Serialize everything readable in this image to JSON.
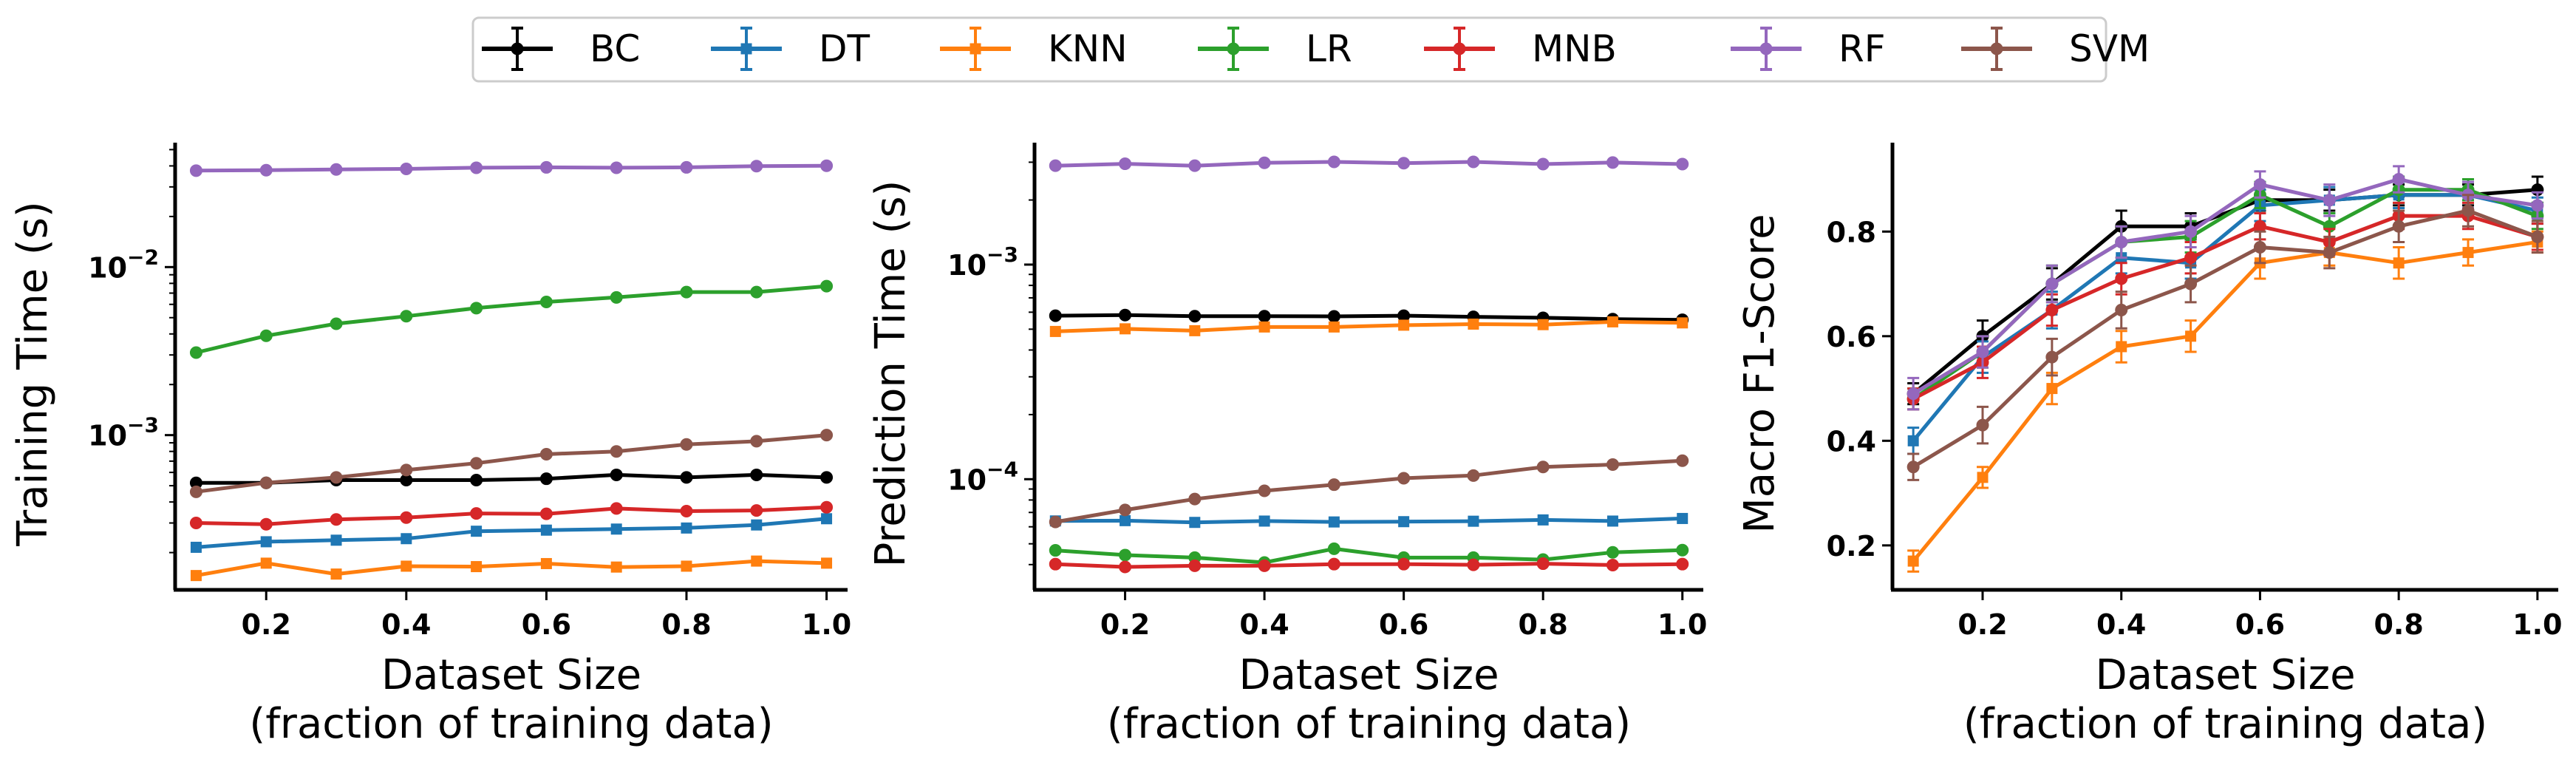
{
  "legend": {
    "entries": [
      {
        "label": "BC",
        "color": "#000000",
        "marker": "circle"
      },
      {
        "label": "DT",
        "color": "#1f77b4",
        "marker": "square"
      },
      {
        "label": "KNN",
        "color": "#ff7f0e",
        "marker": "square"
      },
      {
        "label": "LR",
        "color": "#2ca02c",
        "marker": "circle"
      },
      {
        "label": "MNB",
        "color": "#d62728",
        "marker": "circle"
      },
      {
        "label": "RF",
        "color": "#9467bd",
        "marker": "circle"
      },
      {
        "label": "SVM",
        "color": "#8c564b",
        "marker": "circle"
      }
    ]
  },
  "chart_data": [
    {
      "type": "line",
      "xlabel": "Dataset Size",
      "xlabel2": "(fraction of training data)",
      "ylabel": "Training Time (s)",
      "yscale": "log",
      "ylim": [
        0.00012,
        0.055
      ],
      "xlim": [
        0.07,
        1.03
      ],
      "xticks": [
        "0.2",
        "0.4",
        "0.6",
        "0.8",
        "1.0"
      ],
      "yticks": [
        {
          "value": 0.001,
          "base": "10",
          "exp": "−3"
        },
        {
          "value": 0.01,
          "base": "10",
          "exp": "−2"
        }
      ],
      "x": [
        0.1,
        0.2,
        0.3,
        0.4,
        0.5,
        0.6,
        0.7,
        0.8,
        0.9,
        1.0
      ],
      "series": [
        {
          "name": "BC",
          "values": [
            0.00052,
            0.00052,
            0.00054,
            0.00054,
            0.00054,
            0.00055,
            0.00058,
            0.00056,
            0.00058,
            0.00056
          ]
        },
        {
          "name": "DT",
          "values": [
            0.000215,
            0.000232,
            0.000237,
            0.000242,
            0.000268,
            0.000272,
            0.000276,
            0.00028,
            0.000292,
            0.000318
          ]
        },
        {
          "name": "KNN",
          "values": [
            0.000146,
            0.000173,
            0.000149,
            0.000166,
            0.000165,
            0.000172,
            0.000164,
            0.000166,
            0.000178,
            0.000173
          ]
        },
        {
          "name": "LR",
          "values": [
            0.0031,
            0.0039,
            0.0046,
            0.0051,
            0.0057,
            0.0062,
            0.0066,
            0.0071,
            0.0071,
            0.0077
          ]
        },
        {
          "name": "MNB",
          "values": [
            0.0003,
            0.000295,
            0.000315,
            0.000323,
            0.000342,
            0.00034,
            0.000366,
            0.000353,
            0.000356,
            0.000372
          ]
        },
        {
          "name": "RF",
          "values": [
            0.0375,
            0.0377,
            0.0381,
            0.0384,
            0.039,
            0.0392,
            0.039,
            0.0392,
            0.0399,
            0.0401
          ]
        },
        {
          "name": "SVM",
          "values": [
            0.00046,
            0.00052,
            0.00056,
            0.00062,
            0.00068,
            0.00077,
            0.0008,
            0.00088,
            0.00092,
            0.001
          ]
        }
      ]
    },
    {
      "type": "line",
      "xlabel": "Dataset Size",
      "xlabel2": "(fraction of training data)",
      "ylabel": "Prediction Time (s)",
      "yscale": "log",
      "ylim": [
        3.05e-05,
        0.0037
      ],
      "xlim": [
        0.07,
        1.03
      ],
      "xticks": [
        "0.2",
        "0.4",
        "0.6",
        "0.8",
        "1.0"
      ],
      "yticks": [
        {
          "value": 0.0001,
          "base": "10",
          "exp": "−4"
        },
        {
          "value": 0.001,
          "base": "10",
          "exp": "−3"
        }
      ],
      "x": [
        0.1,
        0.2,
        0.3,
        0.4,
        0.5,
        0.6,
        0.7,
        0.8,
        0.9,
        1.0
      ],
      "series": [
        {
          "name": "BC",
          "values": [
            0.000578,
            0.000582,
            0.000575,
            0.000575,
            0.000574,
            0.000578,
            0.000571,
            0.000565,
            0.000557,
            0.000553
          ]
        },
        {
          "name": "DT",
          "values": [
            6.39e-05,
            6.41e-05,
            6.29e-05,
            6.38e-05,
            6.32e-05,
            6.34e-05,
            6.37e-05,
            6.46e-05,
            6.38e-05,
            6.56e-05
          ]
        },
        {
          "name": "KNN",
          "values": [
            0.000488,
            0.000502,
            0.000492,
            0.000512,
            0.000512,
            0.000522,
            0.000528,
            0.000525,
            0.000541,
            0.000535
          ]
        },
        {
          "name": "LR",
          "values": [
            4.66e-05,
            4.43e-05,
            4.31e-05,
            4.09e-05,
            4.74e-05,
            4.31e-05,
            4.31e-05,
            4.22e-05,
            4.56e-05,
            4.67e-05
          ]
        },
        {
          "name": "MNB",
          "values": [
            4.02e-05,
            3.9e-05,
            3.95e-05,
            3.95e-05,
            4.02e-05,
            4.02e-05,
            3.99e-05,
            4.04e-05,
            3.98e-05,
            4.02e-05
          ]
        },
        {
          "name": "RF",
          "values": [
            0.00289,
            0.00295,
            0.00289,
            0.00298,
            0.00301,
            0.00297,
            0.00301,
            0.00294,
            0.00299,
            0.00294
          ]
        },
        {
          "name": "SVM",
          "values": [
            6.32e-05,
            7.19e-05,
            8.08e-05,
            8.83e-05,
            9.43e-05,
            0.000101,
            0.000104,
            0.000114,
            0.000117,
            0.000122
          ]
        }
      ]
    },
    {
      "type": "line",
      "xlabel": "Dataset Size",
      "xlabel2": "(fraction of training data)",
      "ylabel": "Macro F1-Score",
      "yscale": "linear",
      "ylim": [
        0.115,
        0.97
      ],
      "xlim": [
        0.07,
        1.03
      ],
      "xticks": [
        "0.2",
        "0.4",
        "0.6",
        "0.8",
        "1.0"
      ],
      "yticks": [
        {
          "value": 0.2,
          "label": "0.2"
        },
        {
          "value": 0.4,
          "label": "0.4"
        },
        {
          "value": 0.6,
          "label": "0.6"
        },
        {
          "value": 0.8,
          "label": "0.8"
        }
      ],
      "x": [
        0.1,
        0.2,
        0.3,
        0.4,
        0.5,
        0.6,
        0.7,
        0.8,
        0.9,
        1.0
      ],
      "series": [
        {
          "name": "BC",
          "values": [
            0.49,
            0.6,
            0.7,
            0.81,
            0.81,
            0.86,
            0.86,
            0.87,
            0.87,
            0.88
          ],
          "errors": [
            0.02,
            0.03,
            0.03,
            0.03,
            0.025,
            0.02,
            0.02,
            0.02,
            0.02,
            0.025
          ]
        },
        {
          "name": "DT",
          "values": [
            0.4,
            0.56,
            0.65,
            0.75,
            0.74,
            0.85,
            0.86,
            0.87,
            0.87,
            0.84
          ],
          "errors": [
            0.025,
            0.03,
            0.035,
            0.03,
            0.03,
            0.03,
            0.025,
            0.025,
            0.025,
            0.025
          ]
        },
        {
          "name": "KNN",
          "values": [
            0.17,
            0.33,
            0.5,
            0.58,
            0.6,
            0.74,
            0.76,
            0.74,
            0.76,
            0.78
          ],
          "errors": [
            0.02,
            0.02,
            0.03,
            0.03,
            0.03,
            0.03,
            0.025,
            0.03,
            0.025,
            0.02
          ]
        },
        {
          "name": "LR",
          "values": [
            0.48,
            0.57,
            0.7,
            0.78,
            0.79,
            0.87,
            0.81,
            0.88,
            0.88,
            0.83
          ],
          "errors": [
            0.02,
            0.03,
            0.035,
            0.03,
            0.03,
            0.025,
            0.025,
            0.025,
            0.02,
            0.025
          ]
        },
        {
          "name": "MNB",
          "values": [
            0.48,
            0.55,
            0.65,
            0.71,
            0.75,
            0.81,
            0.78,
            0.83,
            0.83,
            0.79
          ],
          "errors": [
            0.02,
            0.03,
            0.03,
            0.03,
            0.03,
            0.025,
            0.025,
            0.025,
            0.025,
            0.025
          ]
        },
        {
          "name": "RF",
          "values": [
            0.49,
            0.57,
            0.7,
            0.78,
            0.8,
            0.89,
            0.86,
            0.9,
            0.87,
            0.85
          ],
          "errors": [
            0.03,
            0.03,
            0.035,
            0.03,
            0.03,
            0.025,
            0.03,
            0.025,
            0.025,
            0.025
          ]
        },
        {
          "name": "SVM",
          "values": [
            0.35,
            0.43,
            0.56,
            0.65,
            0.7,
            0.77,
            0.76,
            0.81,
            0.84,
            0.79
          ],
          "errors": [
            0.025,
            0.035,
            0.035,
            0.035,
            0.035,
            0.03,
            0.03,
            0.03,
            0.03,
            0.03
          ]
        }
      ]
    }
  ]
}
